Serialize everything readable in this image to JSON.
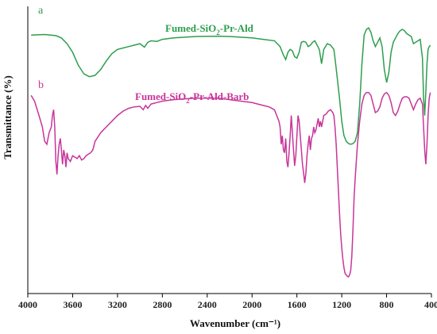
{
  "chart_data": {
    "type": "line",
    "xlabel": "Wavenumber (cm⁻¹)",
    "ylabel": "Transmittance (%)",
    "xlim": [
      4000,
      400
    ],
    "x_reversed": true,
    "x_ticks": [
      4000,
      3600,
      3200,
      2800,
      2400,
      2000,
      1600,
      1200,
      800,
      400
    ],
    "ylim": [
      0,
      100
    ],
    "y_ticks_shown": false,
    "grid": false,
    "legend": "none",
    "panel_labels": [
      "a",
      "b"
    ],
    "series": [
      {
        "name": "Fumed-SiO2-Pr-Ald",
        "label_main": "Fumed-SiO",
        "label_sub": "2",
        "label_rest": "-Pr-Ald",
        "color": "#2e9e4e",
        "points": [
          [
            3970,
            90.0
          ],
          [
            3850,
            90.2
          ],
          [
            3750,
            89.8
          ],
          [
            3700,
            89.0
          ],
          [
            3650,
            87.0
          ],
          [
            3600,
            84.0
          ],
          [
            3550,
            79.5
          ],
          [
            3500,
            76.5
          ],
          [
            3450,
            75.5
          ],
          [
            3400,
            76.0
          ],
          [
            3350,
            78.0
          ],
          [
            3300,
            81.0
          ],
          [
            3250,
            83.5
          ],
          [
            3200,
            85.0
          ],
          [
            3150,
            85.5
          ],
          [
            3100,
            86.0
          ],
          [
            3050,
            86.5
          ],
          [
            3000,
            87.0
          ],
          [
            2960,
            85.8
          ],
          [
            2930,
            87.5
          ],
          [
            2900,
            88.0
          ],
          [
            2850,
            87.8
          ],
          [
            2800,
            88.5
          ],
          [
            2700,
            89.0
          ],
          [
            2500,
            89.5
          ],
          [
            2300,
            89.6
          ],
          [
            2200,
            89.5
          ],
          [
            2000,
            89.0
          ],
          [
            1900,
            88.5
          ],
          [
            1800,
            88.0
          ],
          [
            1750,
            86.0
          ],
          [
            1720,
            83.0
          ],
          [
            1700,
            81.5
          ],
          [
            1680,
            84.0
          ],
          [
            1660,
            85.0
          ],
          [
            1640,
            84.5
          ],
          [
            1620,
            82.5
          ],
          [
            1600,
            82.0
          ],
          [
            1580,
            84.0
          ],
          [
            1560,
            87.5
          ],
          [
            1540,
            87.8
          ],
          [
            1520,
            87.5
          ],
          [
            1500,
            86.0
          ],
          [
            1480,
            86.5
          ],
          [
            1460,
            87.5
          ],
          [
            1440,
            88.0
          ],
          [
            1400,
            85.0
          ],
          [
            1380,
            80.0
          ],
          [
            1360,
            85.0
          ],
          [
            1330,
            87.0
          ],
          [
            1300,
            86.5
          ],
          [
            1270,
            85.0
          ],
          [
            1260,
            82.0
          ],
          [
            1240,
            75.0
          ],
          [
            1220,
            68.0
          ],
          [
            1200,
            60.0
          ],
          [
            1180,
            55.0
          ],
          [
            1160,
            53.0
          ],
          [
            1140,
            52.2
          ],
          [
            1120,
            52.0
          ],
          [
            1100,
            52.2
          ],
          [
            1080,
            53.0
          ],
          [
            1060,
            56.0
          ],
          [
            1040,
            66.0
          ],
          [
            1020,
            80.0
          ],
          [
            1000,
            90.0
          ],
          [
            980,
            92.0
          ],
          [
            960,
            92.5
          ],
          [
            940,
            91.0
          ],
          [
            920,
            88.0
          ],
          [
            900,
            86.0
          ],
          [
            880,
            87.5
          ],
          [
            860,
            89.0
          ],
          [
            840,
            86.0
          ],
          [
            820,
            78.0
          ],
          [
            800,
            73.5
          ],
          [
            780,
            77.0
          ],
          [
            760,
            84.0
          ],
          [
            740,
            87.5
          ],
          [
            720,
            89.0
          ],
          [
            700,
            90.5
          ],
          [
            680,
            91.5
          ],
          [
            660,
            92.0
          ],
          [
            640,
            91.5
          ],
          [
            620,
            90.5
          ],
          [
            600,
            90.0
          ],
          [
            580,
            89.5
          ],
          [
            560,
            87.0
          ],
          [
            540,
            87.5
          ],
          [
            520,
            88.0
          ],
          [
            500,
            88.5
          ],
          [
            480,
            82.0
          ],
          [
            470,
            68.0
          ],
          [
            460,
            62.0
          ],
          [
            450,
            70.0
          ],
          [
            440,
            80.0
          ],
          [
            430,
            85.0
          ],
          [
            420,
            86.0
          ],
          [
            410,
            86.5
          ]
        ]
      },
      {
        "name": "Fumed-SiO2-Pr-Ald-Barb",
        "label_main": "Fumed-SiO",
        "label_sub": "2",
        "label_rest": "-Pr-Ald-Barb",
        "color": "#c8359a",
        "points": [
          [
            3970,
            69.0
          ],
          [
            3940,
            67.0
          ],
          [
            3900,
            62.0
          ],
          [
            3870,
            58.0
          ],
          [
            3850,
            53.0
          ],
          [
            3830,
            52.0
          ],
          [
            3810,
            56.0
          ],
          [
            3790,
            58.0
          ],
          [
            3780,
            62.0
          ],
          [
            3770,
            64.0
          ],
          [
            3760,
            58.0
          ],
          [
            3750,
            46.0
          ],
          [
            3740,
            41.5
          ],
          [
            3730,
            48.0
          ],
          [
            3720,
            52.0
          ],
          [
            3710,
            54.0
          ],
          [
            3700,
            50.0
          ],
          [
            3690,
            45.0
          ],
          [
            3680,
            50.0
          ],
          [
            3670,
            48.0
          ],
          [
            3660,
            44.0
          ],
          [
            3650,
            49.0
          ],
          [
            3640,
            47.0
          ],
          [
            3620,
            46.0
          ],
          [
            3600,
            48.0
          ],
          [
            3580,
            47.5
          ],
          [
            3560,
            47.0
          ],
          [
            3540,
            48.0
          ],
          [
            3520,
            46.5
          ],
          [
            3500,
            47.0
          ],
          [
            3480,
            48.0
          ],
          [
            3460,
            48.5
          ],
          [
            3440,
            49.0
          ],
          [
            3420,
            50.0
          ],
          [
            3400,
            53.0
          ],
          [
            3350,
            56.0
          ],
          [
            3300,
            58.0
          ],
          [
            3250,
            60.0
          ],
          [
            3200,
            62.0
          ],
          [
            3150,
            63.5
          ],
          [
            3100,
            64.5
          ],
          [
            3050,
            65.0
          ],
          [
            3000,
            65.2
          ],
          [
            2970,
            64.0
          ],
          [
            2950,
            65.5
          ],
          [
            2930,
            64.5
          ],
          [
            2900,
            66.0
          ],
          [
            2850,
            66.5
          ],
          [
            2800,
            67.0
          ],
          [
            2700,
            67.5
          ],
          [
            2600,
            67.8
          ],
          [
            2500,
            68.0
          ],
          [
            2400,
            68.0
          ],
          [
            2300,
            68.0
          ],
          [
            2200,
            67.5
          ],
          [
            2100,
            67.0
          ],
          [
            2000,
            66.5
          ],
          [
            1950,
            66.0
          ],
          [
            1900,
            65.5
          ],
          [
            1850,
            65.0
          ],
          [
            1800,
            64.0
          ],
          [
            1780,
            62.0
          ],
          [
            1760,
            60.0
          ],
          [
            1750,
            58.0
          ],
          [
            1740,
            52.0
          ],
          [
            1730,
            55.0
          ],
          [
            1720,
            50.0
          ],
          [
            1710,
            49.0
          ],
          [
            1700,
            54.0
          ],
          [
            1690,
            46.0
          ],
          [
            1680,
            44.0
          ],
          [
            1670,
            49.0
          ],
          [
            1660,
            55.0
          ],
          [
            1650,
            62.0
          ],
          [
            1640,
            56.0
          ],
          [
            1630,
            50.0
          ],
          [
            1620,
            44.5
          ],
          [
            1610,
            48.0
          ],
          [
            1600,
            55.0
          ],
          [
            1590,
            62.0
          ],
          [
            1580,
            60.0
          ],
          [
            1570,
            55.0
          ],
          [
            1560,
            50.0
          ],
          [
            1550,
            45.0
          ],
          [
            1540,
            42.0
          ],
          [
            1530,
            38.5
          ],
          [
            1520,
            42.0
          ],
          [
            1510,
            48.0
          ],
          [
            1500,
            52.0
          ],
          [
            1490,
            55.0
          ],
          [
            1480,
            50.0
          ],
          [
            1470,
            54.0
          ],
          [
            1460,
            55.0
          ],
          [
            1450,
            58.0
          ],
          [
            1440,
            56.0
          ],
          [
            1430,
            57.0
          ],
          [
            1420,
            59.0
          ],
          [
            1410,
            61.0
          ],
          [
            1400,
            58.0
          ],
          [
            1390,
            60.0
          ],
          [
            1380,
            58.0
          ],
          [
            1370,
            60.0
          ],
          [
            1360,
            62.0
          ],
          [
            1340,
            62.5
          ],
          [
            1320,
            63.5
          ],
          [
            1300,
            64.0
          ],
          [
            1280,
            63.0
          ],
          [
            1270,
            62.0
          ],
          [
            1260,
            58.0
          ],
          [
            1250,
            52.0
          ],
          [
            1240,
            44.0
          ],
          [
            1230,
            36.0
          ],
          [
            1220,
            28.0
          ],
          [
            1210,
            21.0
          ],
          [
            1200,
            16.0
          ],
          [
            1190,
            12.0
          ],
          [
            1180,
            9.0
          ],
          [
            1170,
            7.0
          ],
          [
            1160,
            6.5
          ],
          [
            1150,
            6.0
          ],
          [
            1140,
            5.8
          ],
          [
            1130,
            6.5
          ],
          [
            1120,
            8.0
          ],
          [
            1110,
            13.0
          ],
          [
            1100,
            22.0
          ],
          [
            1090,
            33.0
          ],
          [
            1080,
            40.0
          ],
          [
            1060,
            52.0
          ],
          [
            1040,
            60.0
          ],
          [
            1020,
            66.0
          ],
          [
            1000,
            69.0
          ],
          [
            980,
            70.0
          ],
          [
            960,
            70.0
          ],
          [
            940,
            69.0
          ],
          [
            920,
            66.0
          ],
          [
            900,
            63.0
          ],
          [
            880,
            63.5
          ],
          [
            860,
            65.0
          ],
          [
            840,
            68.0
          ],
          [
            820,
            69.5
          ],
          [
            800,
            70.0
          ],
          [
            780,
            69.0
          ],
          [
            760,
            66.5
          ],
          [
            740,
            63.0
          ],
          [
            720,
            62.0
          ],
          [
            700,
            63.5
          ],
          [
            680,
            66.0
          ],
          [
            660,
            68.0
          ],
          [
            640,
            68.5
          ],
          [
            620,
            68.5
          ],
          [
            600,
            68.0
          ],
          [
            580,
            66.0
          ],
          [
            560,
            64.0
          ],
          [
            540,
            66.0
          ],
          [
            520,
            67.5
          ],
          [
            500,
            68.0
          ],
          [
            480,
            66.0
          ],
          [
            470,
            58.0
          ],
          [
            460,
            50.0
          ],
          [
            450,
            45.0
          ],
          [
            440,
            52.0
          ],
          [
            430,
            62.0
          ],
          [
            420,
            68.0
          ],
          [
            410,
            70.0
          ]
        ]
      }
    ]
  }
}
